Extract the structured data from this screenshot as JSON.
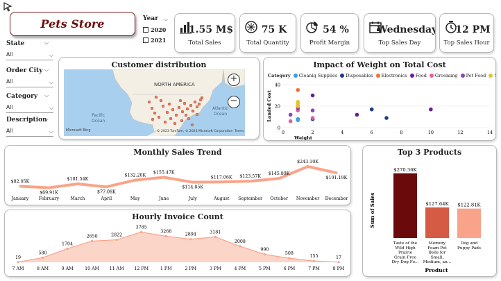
{
  "header": {
    "title": "Pets Store Dashboard"
  },
  "filters": {
    "year": {
      "label": "Year",
      "options": [
        "2020",
        "2021"
      ]
    },
    "state": {
      "label": "State",
      "value": "All"
    },
    "order_city": {
      "label": "Order City",
      "value": "All"
    },
    "category": {
      "label": "Category",
      "value": "All"
    },
    "description": {
      "label": "Description",
      "value": "All"
    }
  },
  "kpis": [
    {
      "value": "1.55 M$",
      "label": "Total Sales",
      "icon": "bar-chart-icon"
    },
    {
      "value": "75 K",
      "label": "Total Quantity",
      "icon": "boxes-icon"
    },
    {
      "value": "54 %",
      "label": "Profit Margin",
      "icon": "pie-chart-icon"
    },
    {
      "value": "Wednesday",
      "label": "Top Sales Day",
      "icon": "calendar-icon"
    },
    {
      "value": "12 PM",
      "label": "Top Sales Hour",
      "icon": "clock-icon"
    }
  ],
  "map": {
    "title": "Customer distribution",
    "continent_label": "NORTH AMERICA",
    "ocean_left": "Pacific\nOcean",
    "ocean_right": "Atlantic\nOcean",
    "brand": "Microsoft Bing",
    "copyright": "© 2023 TomTom, © 2023 Microsoft Corporation",
    "terms": "Terms",
    "zoom_in": "+",
    "zoom_out": "−"
  },
  "scatter": {
    "title": "Impact of Weight on Total Cost",
    "legend_title": "Category",
    "x_label": "Weight",
    "y_label": "Landed Cost",
    "chart_data": {
      "type": "scatter",
      "title": "Impact of Weight on Total Cost",
      "xlabel": "Weight",
      "ylabel": "Landed Cost",
      "xlim": [
        0,
        14
      ],
      "ylim": [
        0,
        40
      ],
      "x_ticks": [
        0,
        2,
        4,
        6,
        8,
        10,
        12,
        14
      ],
      "y_ticks": [
        0,
        20,
        40
      ],
      "series": [
        {
          "name": "Cleanig Supplies",
          "color": "#3aa0e0",
          "points": [
            [
              1,
              7
            ],
            [
              1,
              8
            ]
          ]
        },
        {
          "name": "Disposables",
          "color": "#1f3a8a",
          "points": [
            [
              2,
              8
            ],
            [
              6,
              17
            ],
            [
              7,
              9
            ]
          ]
        },
        {
          "name": "Electronics",
          "color": "#f07030",
          "points": [
            [
              1,
              35
            ]
          ]
        },
        {
          "name": "Food",
          "color": "#6a1b9a",
          "points": [
            [
              2,
              30
            ],
            [
              5,
              12
            ],
            [
              10,
              17
            ]
          ]
        },
        {
          "name": "Grooming",
          "color": "#e060a0",
          "points": [
            [
              0.5,
              6
            ],
            [
              1,
              16
            ],
            [
              2,
              9
            ]
          ]
        },
        {
          "name": "Pet Food",
          "color": "#8e44ad",
          "points": [
            [
              0.5,
              12
            ],
            [
              1,
              18
            ],
            [
              2,
              16
            ]
          ]
        },
        {
          "name": "Supplements",
          "color": "#e6c229",
          "points": [
            [
              1,
              20
            ],
            [
              1,
              22
            ],
            [
              1,
              24
            ]
          ]
        }
      ]
    }
  },
  "monthly": {
    "title": "Monthly Sales Trend",
    "chart_data": {
      "type": "area",
      "title": "Monthly Sales Trend",
      "categories": [
        "January",
        "February",
        "March",
        "April",
        "May",
        "June",
        "July",
        "August",
        "September",
        "October",
        "November",
        "December"
      ],
      "values": [
        82.05,
        69.91,
        101.54,
        77.08,
        132.2,
        155.47,
        114.85,
        117.06,
        123.57,
        145.89,
        243.1,
        191.19
      ],
      "labels": [
        "$82.05K",
        "$69.91K",
        "$101.54K",
        "$77.08K",
        "$132.20K",
        "$155.47K",
        "$114.85K",
        "$117.06K",
        "$123.57K",
        "$145.89K",
        "$243.10K",
        "$191.19K"
      ],
      "ylim": [
        0,
        260
      ],
      "color": "#f9a48a"
    }
  },
  "hourly": {
    "title": "Hourly Invoice Count",
    "chart_data": {
      "type": "area",
      "title": "Hourly Invoice Count",
      "categories": [
        "7 AM",
        "8 AM",
        "9 AM",
        "10 AM",
        "11 AM",
        "12 PM",
        "1 PM",
        "2 PM",
        "3 PM",
        "4 PM",
        "5 PM",
        "6 PM",
        "7 PM",
        "8 PM"
      ],
      "values": [
        19,
        580,
        1704,
        2650,
        2822,
        3785,
        3268,
        2894,
        3181,
        2008,
        990,
        508,
        155,
        17
      ],
      "ylim": [
        0,
        4000
      ],
      "color": "#f9a48a"
    }
  },
  "top_products": {
    "title": "Top 3 Products",
    "y_label": "Sum of Sales",
    "x_label": "Product",
    "chart_data": {
      "type": "bar",
      "title": "Top 3 Products",
      "ylabel": "Sum of Sales",
      "xlabel": "Product",
      "categories": [
        "Taste of the Wild High Prairie Grain-Free Dry Dog Fo...",
        "Memory Foam Pet Beds for Small, Medium, an...",
        "Dog and Puppy Pads"
      ],
      "category_lines": [
        [
          "Taste of the",
          "Wild High",
          "Prairie",
          "Grain-Free",
          "Dry Dog Fo..."
        ],
        [
          "Memory",
          "Foam Pet",
          "Beds for",
          "Small,",
          "Medium, an..."
        ],
        [
          "Dog and",
          "Puppy Pads"
        ]
      ],
      "values": [
        270.36,
        127.64,
        122.81
      ],
      "labels": [
        "$270.36K",
        "$127.64K",
        "$122.81K"
      ],
      "colors": [
        "#6b0a0a",
        "#d65b45",
        "#f9a48a"
      ],
      "ylim": [
        0,
        290
      ]
    }
  }
}
